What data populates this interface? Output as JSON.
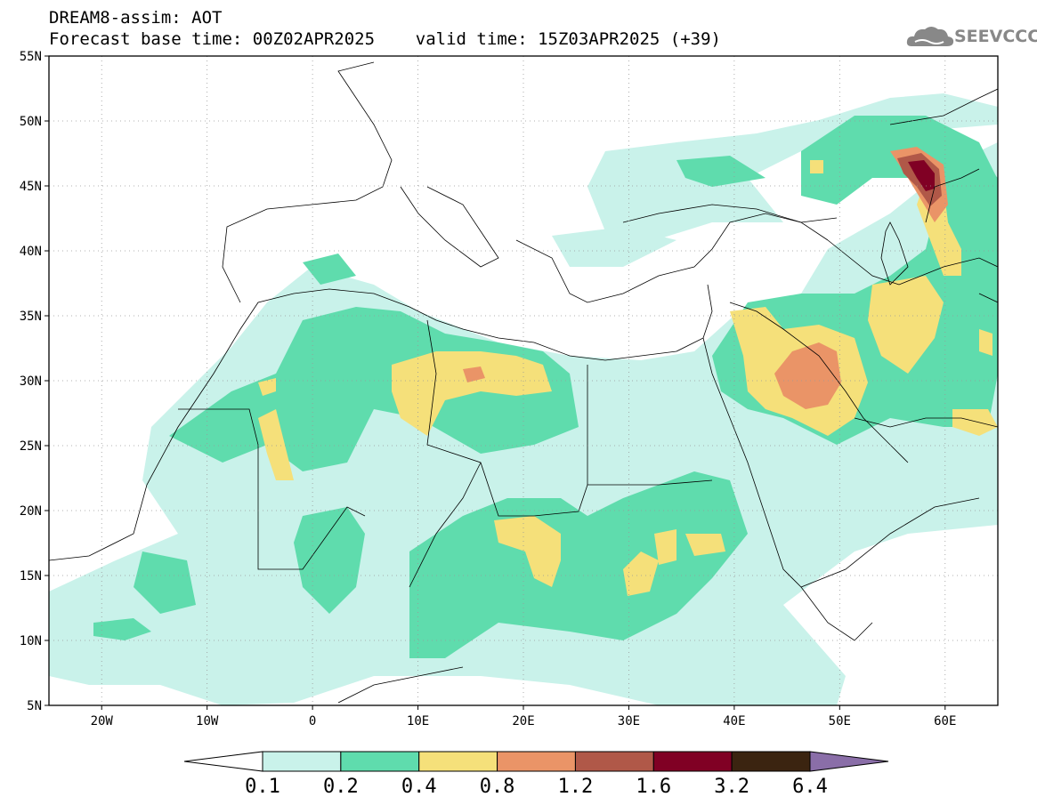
{
  "header": {
    "title_line1": "DREAM8-assim: AOT",
    "title_line2": "Forecast base time: 00Z02APR2025    valid time: 15Z03APR2025 (+39)",
    "logo_text": "SEEVCCC"
  },
  "map": {
    "lon_range": [
      -25,
      65
    ],
    "lat_range": [
      5,
      55
    ],
    "lat_ticks": [
      {
        "v": 55,
        "label": "55N"
      },
      {
        "v": 50,
        "label": "50N"
      },
      {
        "v": 45,
        "label": "45N"
      },
      {
        "v": 40,
        "label": "40N"
      },
      {
        "v": 35,
        "label": "35N"
      },
      {
        "v": 30,
        "label": "30N"
      },
      {
        "v": 25,
        "label": "25N"
      },
      {
        "v": 20,
        "label": "20N"
      },
      {
        "v": 15,
        "label": "15N"
      },
      {
        "v": 10,
        "label": "10N"
      },
      {
        "v": 5,
        "label": "5N"
      }
    ],
    "lon_ticks": [
      {
        "v": -20,
        "label": "20W"
      },
      {
        "v": -10,
        "label": "10W"
      },
      {
        "v": 0,
        "label": "0"
      },
      {
        "v": 10,
        "label": "10E"
      },
      {
        "v": 20,
        "label": "20E"
      },
      {
        "v": 30,
        "label": "30E"
      },
      {
        "v": 40,
        "label": "40E"
      },
      {
        "v": 50,
        "label": "50E"
      },
      {
        "v": 60,
        "label": "60E"
      }
    ],
    "grid": "dotted"
  },
  "colorbar": {
    "levels": [
      "0.1",
      "0.2",
      "0.4",
      "0.8",
      "1.2",
      "1.6",
      "3.2",
      "6.4"
    ],
    "colors": [
      "#ffffff",
      "#c9f2ea",
      "#5fdcad",
      "#f5e07a",
      "#ea9467",
      "#b05848",
      "#800024",
      "#3b2410",
      "#8a6ea8"
    ]
  },
  "aot_colors": {
    "c1": "#c9f2ea",
    "c2": "#5fdcad",
    "c3": "#f5e07a",
    "c4": "#ea9467",
    "c5": "#b05848",
    "c6": "#800024"
  }
}
